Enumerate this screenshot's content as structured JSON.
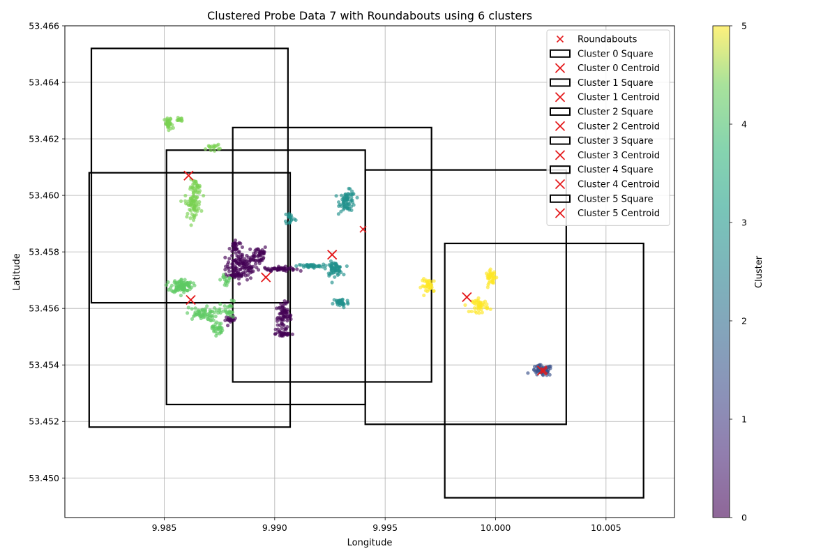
{
  "chart_data": {
    "type": "scatter",
    "title": "Clustered Probe Data 7 with Roundabouts using 6 clusters",
    "xlabel": "Longitude",
    "ylabel": "Latitude",
    "xlim": [
      9.9805,
      10.0081
    ],
    "ylim": [
      53.4486,
      53.466
    ],
    "xticks": [
      9.985,
      9.99,
      9.995,
      10.0,
      10.005
    ],
    "xtick_labels": [
      "9.985",
      "9.990",
      "9.995",
      "10.000",
      "10.005"
    ],
    "yticks": [
      53.45,
      53.452,
      53.454,
      53.456,
      53.458,
      53.46,
      53.462,
      53.464,
      53.466
    ],
    "ytick_labels": [
      "53.450",
      "53.452",
      "53.454",
      "53.456",
      "53.458",
      "53.460",
      "53.462",
      "53.464",
      "53.466"
    ],
    "grid": true,
    "legend_position": "top-right",
    "colorbar": {
      "label": "Cluster",
      "min": 0,
      "max": 5,
      "ticks": [
        0,
        1,
        2,
        3,
        4,
        5
      ],
      "tick_labels": [
        "0",
        "1",
        "2",
        "3",
        "4",
        "5"
      ],
      "colormap": "viridis"
    },
    "cluster_colors": [
      "#440154",
      "#3b528b",
      "#21918c",
      "#5ec962",
      "#7ad151",
      "#fde725"
    ],
    "roundabouts": [
      {
        "x": 9.9861,
        "y": 53.4607
      },
      {
        "x": 9.9862,
        "y": 53.4563
      },
      {
        "x": 9.9896,
        "y": 53.4571
      },
      {
        "x": 9.9926,
        "y": 53.4579
      },
      {
        "x": 9.994,
        "y": 53.4588
      },
      {
        "x": 9.9987,
        "y": 53.4564
      },
      {
        "x": 10.0022,
        "y": 53.4538
      }
    ],
    "clusters": [
      {
        "id": 0,
        "legend_square": "Cluster 0 Square",
        "legend_centroid": "Cluster 0 Centroid",
        "centroid": {
          "x": 9.9896,
          "y": 53.4571
        },
        "square": {
          "x0": 9.9816,
          "x1": 9.9907,
          "y0": 53.4518,
          "y1": 53.4608
        },
        "blobs": [
          {
            "cx": 9.9885,
            "cy": 53.4575,
            "sx": 0.0006,
            "sy": 0.0004,
            "n": 120
          },
          {
            "cx": 9.9893,
            "cy": 53.4579,
            "sx": 0.0003,
            "sy": 0.0003,
            "n": 40
          },
          {
            "cx": 9.9902,
            "cy": 53.4574,
            "sx": 0.0006,
            "sy": 6e-05,
            "n": 50
          },
          {
            "cx": 9.9882,
            "cy": 53.4582,
            "sx": 0.0002,
            "sy": 0.0002,
            "n": 25
          },
          {
            "cx": 9.9883,
            "cy": 53.4572,
            "sx": 0.0003,
            "sy": 8e-05,
            "n": 20
          },
          {
            "cx": 9.988,
            "cy": 53.4556,
            "sx": 0.0002,
            "sy": 0.0001,
            "n": 18
          },
          {
            "cx": 9.9904,
            "cy": 53.4557,
            "sx": 0.0003,
            "sy": 0.0004,
            "n": 70
          },
          {
            "cx": 9.9904,
            "cy": 53.4551,
            "sx": 0.0003,
            "sy": 0.0001,
            "n": 25
          }
        ]
      },
      {
        "id": 1,
        "legend_square": "Cluster 1 Square",
        "legend_centroid": "Cluster 1 Centroid",
        "centroid": {
          "x": 10.0021,
          "y": 53.4538
        },
        "square": {
          "x0": 9.9941,
          "x1": 10.0032,
          "y0": 53.4519,
          "y1": 53.4609
        },
        "blobs": [
          {
            "cx": 10.0021,
            "cy": 53.4538,
            "sx": 0.0004,
            "sy": 0.00016,
            "n": 60
          }
        ]
      },
      {
        "id": 2,
        "legend_square": "Cluster 2 Square",
        "legend_centroid": "Cluster 2 Centroid",
        "centroid": {
          "x": 9.9926,
          "y": 53.4579
        },
        "square": {
          "x0": 9.9881,
          "x1": 9.9971,
          "y0": 53.4534,
          "y1": 53.4624
        },
        "blobs": [
          {
            "cx": 9.9933,
            "cy": 53.4598,
            "sx": 0.0003,
            "sy": 0.0003,
            "n": 70
          },
          {
            "cx": 9.9927,
            "cy": 53.4574,
            "sx": 0.0003,
            "sy": 0.0002,
            "n": 60
          },
          {
            "cx": 9.9916,
            "cy": 53.4575,
            "sx": 0.0005,
            "sy": 5e-05,
            "n": 40
          },
          {
            "cx": 9.993,
            "cy": 53.4562,
            "sx": 0.0003,
            "sy": 0.00015,
            "n": 35
          },
          {
            "cx": 9.9907,
            "cy": 53.4592,
            "sx": 0.0002,
            "sy": 0.0002,
            "n": 18
          }
        ]
      },
      {
        "id": 3,
        "legend_square": "Cluster 3 Square",
        "legend_centroid": "Cluster 3 Centroid",
        "centroid": {
          "x": 9.9862,
          "y": 53.4563
        },
        "square": {
          "x0": 9.9851,
          "x1": 9.9941,
          "y0": 53.4526,
          "y1": 53.4616
        },
        "blobs": [
          {
            "cx": 9.9858,
            "cy": 53.4568,
            "sx": 0.0004,
            "sy": 0.0002,
            "n": 90
          },
          {
            "cx": 9.9867,
            "cy": 53.4558,
            "sx": 0.0006,
            "sy": 0.0002,
            "n": 60
          },
          {
            "cx": 9.9874,
            "cy": 53.4553,
            "sx": 0.0002,
            "sy": 0.0002,
            "n": 30
          },
          {
            "cx": 9.9879,
            "cy": 53.4559,
            "sx": 0.0003,
            "sy": 0.0003,
            "n": 25
          },
          {
            "cx": 9.9878,
            "cy": 53.457,
            "sx": 0.0002,
            "sy": 0.0002,
            "n": 15
          }
        ]
      },
      {
        "id": 4,
        "legend_square": "Cluster 4 Square",
        "legend_centroid": "Cluster 4 Centroid",
        "centroid": {
          "x": 9.9861,
          "y": 53.4607
        },
        "square": {
          "x0": 9.9817,
          "x1": 9.9906,
          "y0": 53.4562,
          "y1": 53.4652
        },
        "blobs": [
          {
            "cx": 9.9852,
            "cy": 53.4625,
            "sx": 0.00015,
            "sy": 0.0002,
            "n": 35
          },
          {
            "cx": 9.9857,
            "cy": 53.4627,
            "sx": 0.00012,
            "sy": 8e-05,
            "n": 12
          },
          {
            "cx": 9.9872,
            "cy": 53.4617,
            "sx": 0.00025,
            "sy": 8e-05,
            "n": 15
          },
          {
            "cx": 9.9863,
            "cy": 53.4597,
            "sx": 0.0003,
            "sy": 0.0004,
            "n": 70
          },
          {
            "cx": 9.9864,
            "cy": 53.4603,
            "sx": 0.0002,
            "sy": 0.0002,
            "n": 25
          }
        ]
      },
      {
        "id": 5,
        "legend_square": "Cluster 5 Square",
        "legend_centroid": "Cluster 5 Centroid",
        "centroid": {
          "x": 9.9987,
          "y": 53.4564
        },
        "square": {
          "x0": 9.9977,
          "x1": 10.0067,
          "y0": 53.4493,
          "y1": 53.4583
        },
        "blobs": [
          {
            "cx": 9.997,
            "cy": 53.4568,
            "sx": 0.0003,
            "sy": 0.0002,
            "n": 35
          },
          {
            "cx": 9.9993,
            "cy": 53.4561,
            "sx": 0.0003,
            "sy": 0.0002,
            "n": 45
          },
          {
            "cx": 9.9998,
            "cy": 53.4571,
            "sx": 0.0002,
            "sy": 0.0002,
            "n": 40
          }
        ]
      }
    ],
    "legend": {
      "roundabouts_label": "Roundabouts"
    },
    "colors": {
      "marker": "#e41a1c",
      "square": "#000000",
      "grid": "#b0b0b0"
    }
  }
}
